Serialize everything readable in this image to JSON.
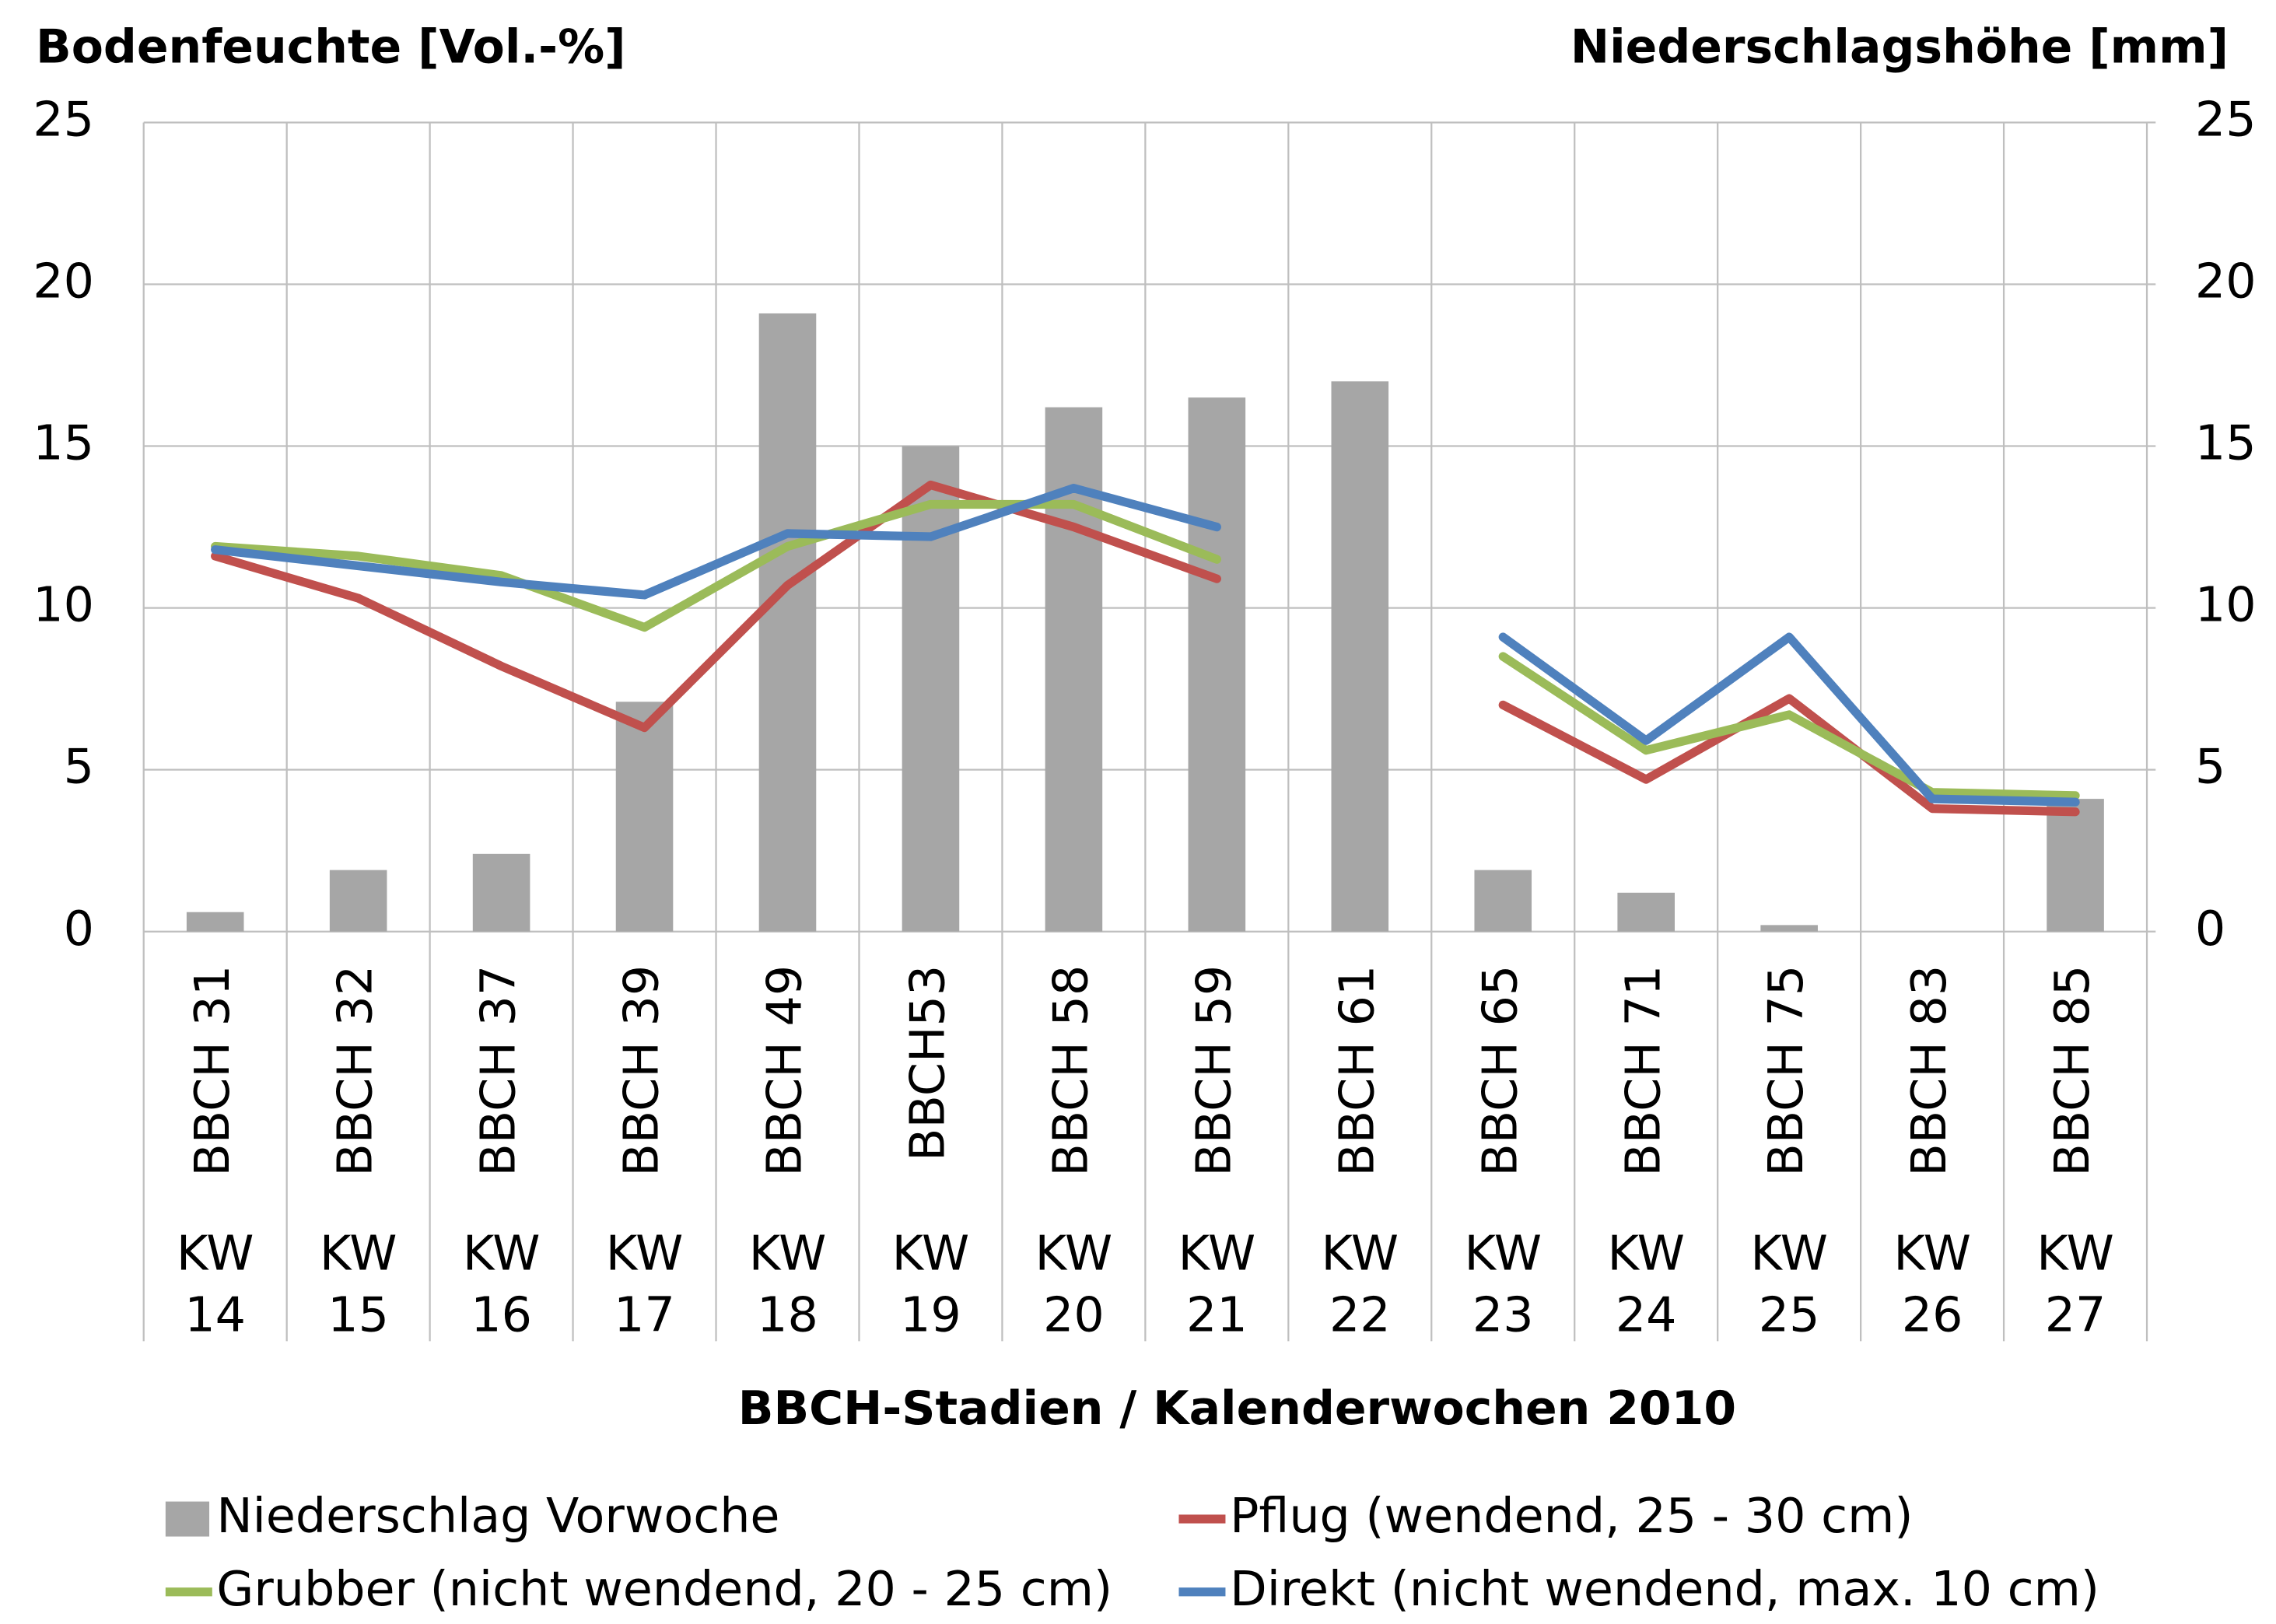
{
  "chart_data": {
    "type": "bar-line",
    "ylabel": "Bodenfeuchte [Vol.-%]",
    "y2label": "Niederschlagshöhe [mm]",
    "xlabel": "BBCH-Stadien / Kalenderwochen 2010",
    "categories": [
      "BBCH 31",
      "BBCH 32",
      "BBCH 37",
      "BBCH 39",
      "BBCH 49",
      "BBCH53",
      "BBCH 58",
      "BBCH 59",
      "BBCH 61",
      "BBCH 65",
      "BBCH 71",
      "BBCH 75",
      "BBCH 83",
      "BBCH 85"
    ],
    "categories2": [
      "KW 14",
      "KW 15",
      "KW 16",
      "KW 17",
      "KW 18",
      "KW 19",
      "KW 20",
      "KW 21",
      "KW 22",
      "KW 23",
      "KW 24",
      "KW 25",
      "KW 26",
      "KW 27"
    ],
    "ylim": [
      0,
      25
    ],
    "yticks": [
      0,
      5,
      10,
      15,
      20,
      25
    ],
    "y2lim": [
      0,
      25
    ],
    "y2ticks": [
      0,
      5,
      10,
      15,
      20,
      25
    ],
    "grid": true,
    "series": [
      {
        "name": "Niederschlag Vorwoche",
        "type": "bar",
        "axis": "y2",
        "color": "#a6a6a6",
        "values": [
          0.6,
          1.9,
          2.4,
          7.1,
          19.1,
          15.0,
          16.2,
          16.5,
          17.0,
          1.9,
          1.2,
          0.2,
          0,
          4.1
        ]
      },
      {
        "name": "Pflug (wendend, 25 - 30 cm)",
        "type": "line",
        "color": "#c0504d",
        "values": [
          11.6,
          10.3,
          8.2,
          6.3,
          10.7,
          13.8,
          12.5,
          10.9,
          null,
          7.0,
          4.7,
          7.2,
          3.8,
          3.7
        ]
      },
      {
        "name": "Grubber (nicht wendend, 20 - 25 cm)",
        "type": "line",
        "color": "#9bbb59",
        "values": [
          11.9,
          11.6,
          11.0,
          9.4,
          11.9,
          13.2,
          13.2,
          11.5,
          null,
          8.5,
          5.6,
          6.7,
          4.3,
          4.2
        ]
      },
      {
        "name": "Direkt (nicht wendend, max. 10 cm)",
        "type": "line",
        "color": "#4f81bd",
        "values": [
          11.8,
          11.3,
          10.8,
          10.4,
          12.3,
          12.2,
          13.7,
          12.5,
          null,
          9.1,
          5.9,
          9.1,
          4.1,
          4.0
        ]
      }
    ]
  }
}
